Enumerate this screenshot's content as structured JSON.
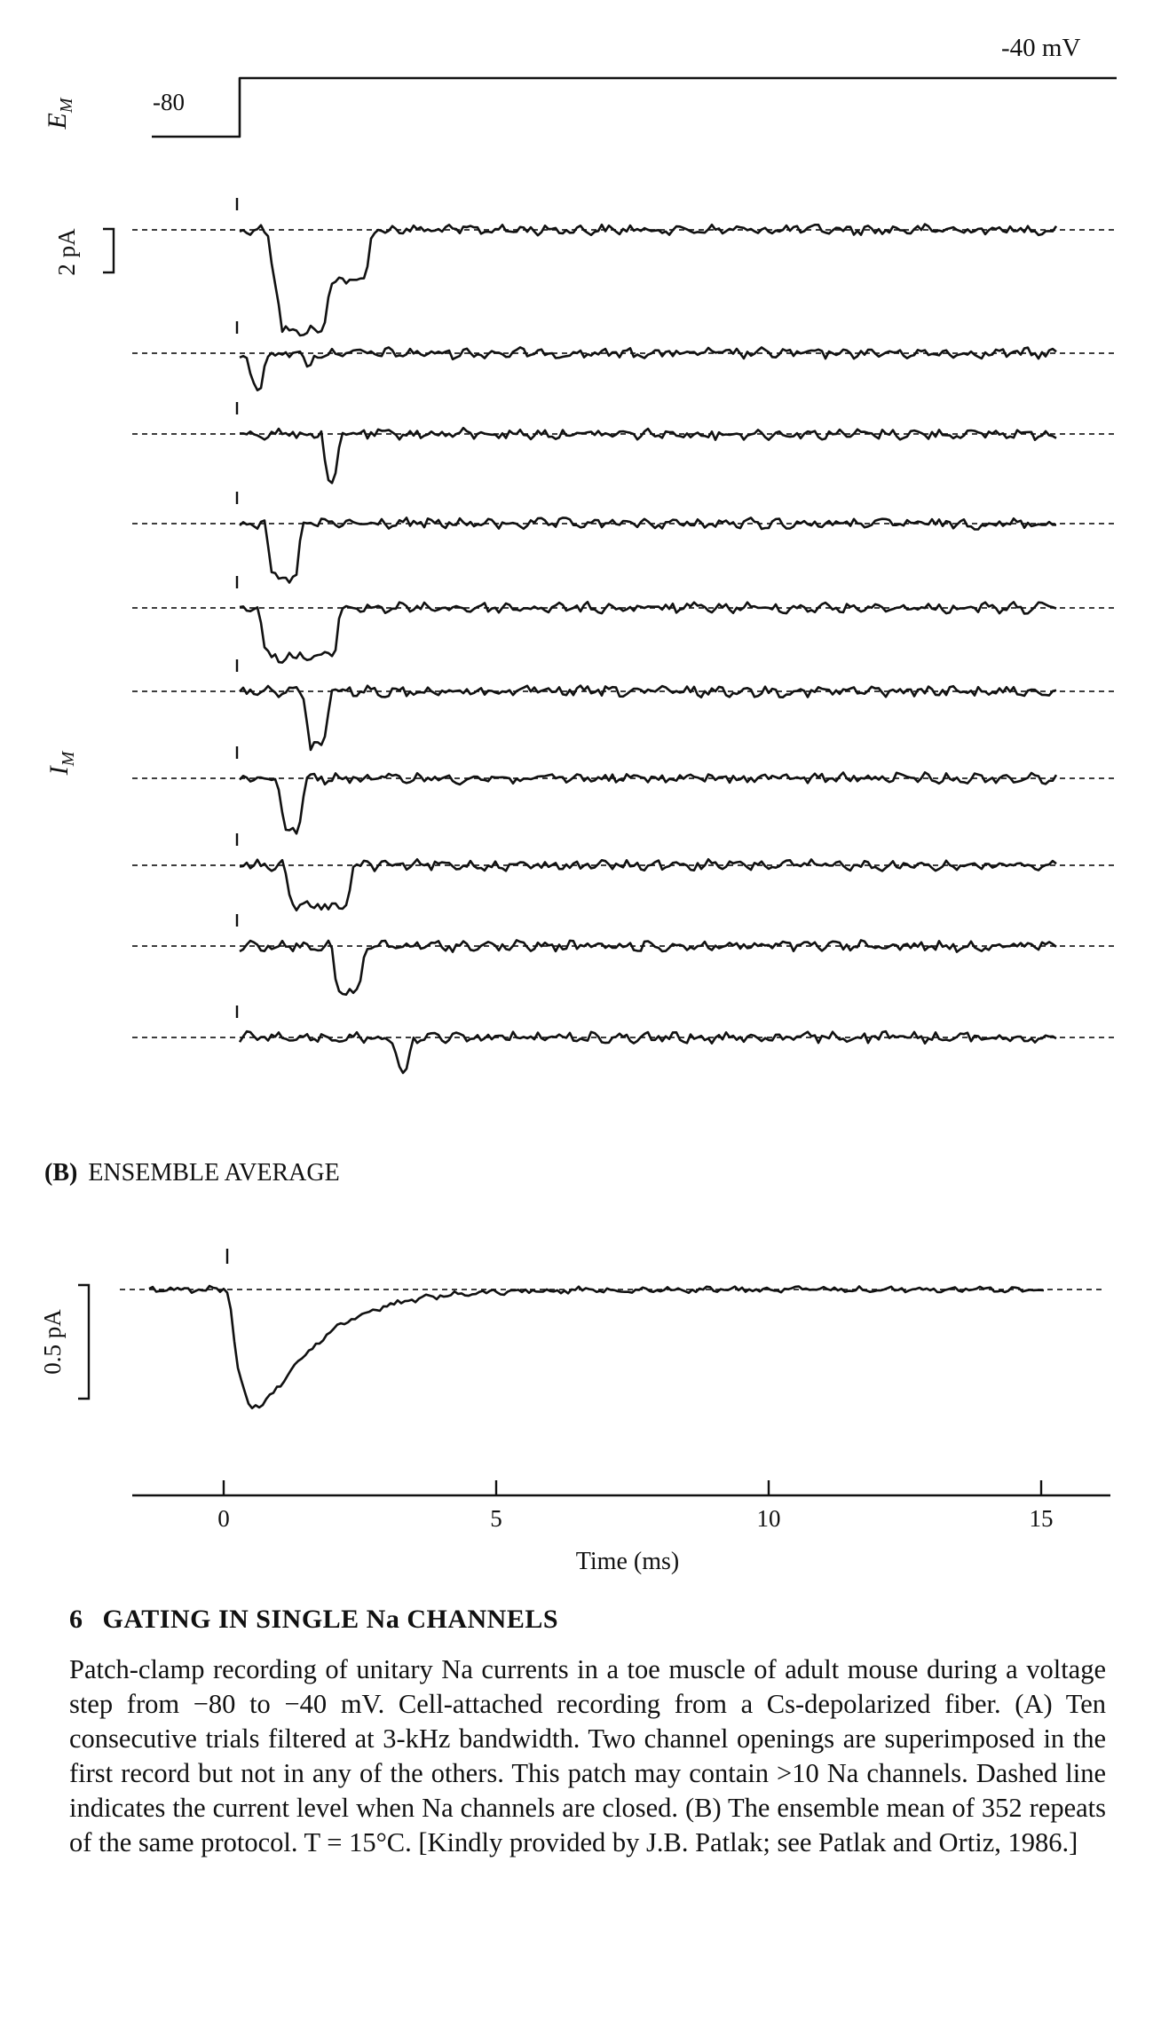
{
  "panel_a": {
    "membrane_potential": {
      "symbol": "E",
      "subscript": "M",
      "holding_label": "-80",
      "step_label": "-40 mV"
    },
    "current": {
      "symbol": "I",
      "subscript": "M",
      "scale_label": "2 pA"
    }
  },
  "panel_b": {
    "letter": "(B)",
    "title": "ENSEMBLE AVERAGE",
    "scale_label": "0.5 pA",
    "time_axis": {
      "ticks": [
        0,
        5,
        10,
        15
      ],
      "label": "Time (ms)"
    }
  },
  "caption": {
    "number": "6",
    "title": "GATING IN SINGLE Na CHANNELS",
    "text": "Patch-clamp recording of unitary Na currents in a toe muscle of adult mouse during a voltage step from −80 to −40 mV. Cell-attached recording from a Cs-depolarized fiber. (A) Ten consecutive trials filtered at 3-kHz bandwidth. Two channel openings are superimposed in the first record but not in any of the others. This patch may contain >10 Na channels. Dashed line indicates the current level when Na channels are closed. (B) The ensemble mean of 352 repeats of the same protocol. T = 15°C. [Kindly provided by J.B. Patlak; see Patlak and Ortiz, 1986.]"
  }
}
